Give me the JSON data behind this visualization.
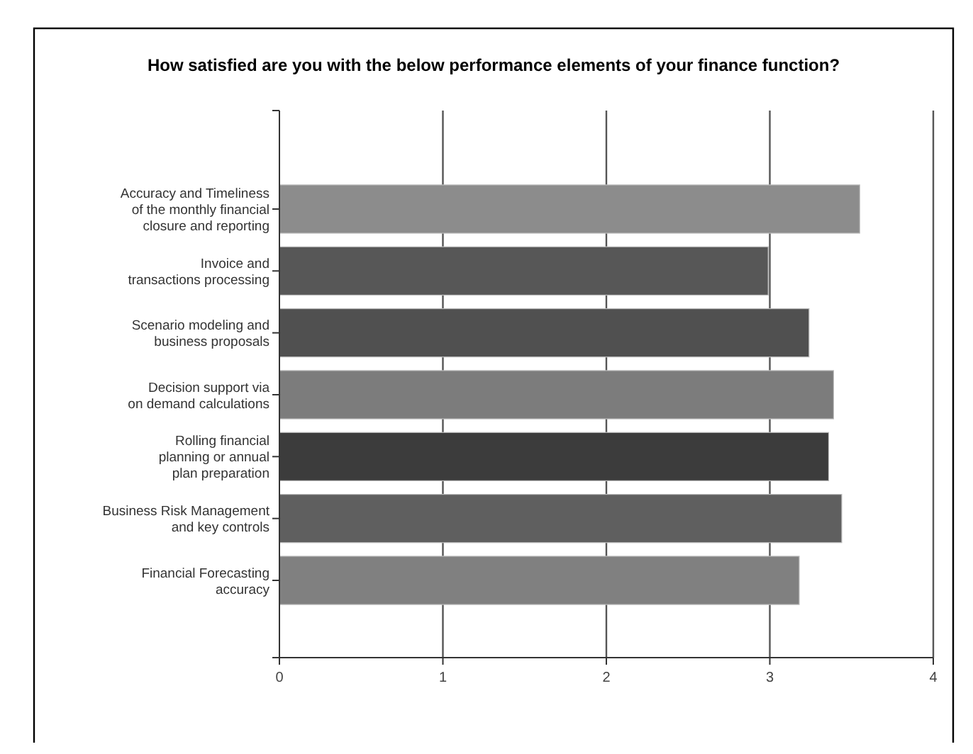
{
  "chart_data": {
    "type": "bar",
    "orientation": "horizontal",
    "title": "How satisfied are you with the below performance elements of your finance function?",
    "categories": [
      "Accuracy and Timeliness\nof the monthly financial\nclosure and reporting",
      "Invoice and\ntransactions processing",
      "Scenario modeling and\nbusiness proposals",
      "Decision support via\non demand calculations",
      "Rolling financial\nplanning or annual\nplan preparation",
      "Business Risk Management\nand key controls",
      "Financial Forecasting\naccuracy"
    ],
    "values": [
      3.55,
      2.99,
      3.24,
      3.39,
      3.36,
      3.44,
      3.18
    ],
    "colors": [
      "#8c8c8c",
      "#575757",
      "#505050",
      "#7c7c7c",
      "#3c3c3c",
      "#5f5f5f",
      "#808080"
    ],
    "xlim": [
      0,
      4
    ],
    "xticks": [
      0,
      1,
      2,
      3,
      4
    ],
    "grid": "x"
  }
}
